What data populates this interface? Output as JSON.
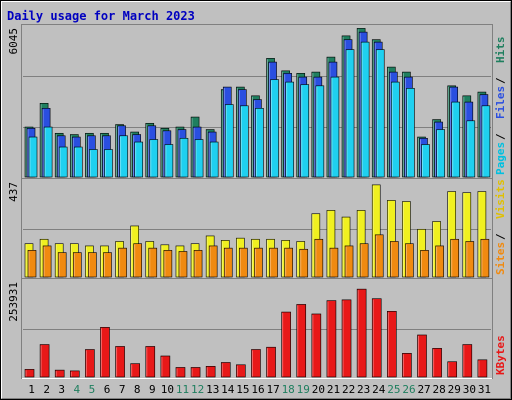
{
  "chart_data": {
    "title": "Daily usage for March 2023",
    "type": "bar",
    "categories": [
      "1",
      "2",
      "3",
      "4",
      "5",
      "6",
      "7",
      "8",
      "9",
      "10",
      "11",
      "12",
      "13",
      "14",
      "15",
      "16",
      "17",
      "18",
      "19",
      "20",
      "21",
      "22",
      "23",
      "24",
      "25",
      "26",
      "27",
      "28",
      "29",
      "30",
      "31"
    ],
    "weekend_days": [
      "4",
      "5",
      "11",
      "12",
      "18",
      "19",
      "25",
      "26"
    ],
    "panels": [
      {
        "id": "hits",
        "ymax_label": "6045",
        "ylim": [
          0,
          6045
        ],
        "labels": [
          "Pages",
          "Files",
          "Hits"
        ],
        "series": [
          {
            "name": "Hits",
            "color": "#1f7f5f",
            "values": [
              2000,
              2950,
              1750,
              1700,
              1750,
              1750,
              2100,
              1800,
              2150,
              1950,
              2000,
              2400,
              1900,
              3500,
              3600,
              3250,
              4750,
              4250,
              4150,
              4200,
              4800,
              5650,
              5950,
              5500,
              4400,
              4200,
              1600,
              2300,
              3650,
              3250,
              3400
            ]
          },
          {
            "name": "Files",
            "color": "#2a4fe0",
            "values": [
              1950,
              2750,
              1650,
              1600,
              1650,
              1650,
              2050,
              1700,
              2050,
              1850,
              1900,
              2000,
              1800,
              3600,
              3500,
              3100,
              4600,
              4150,
              4000,
              4000,
              4600,
              5500,
              5800,
              5400,
              4200,
              4000,
              1550,
              2200,
              3600,
              3000,
              3300
            ]
          },
          {
            "name": "Pages",
            "color": "#1fd0f0",
            "values": [
              1600,
              2000,
              1200,
              1200,
              1100,
              1100,
              1650,
              1400,
              1500,
              1300,
              1550,
              1500,
              1400,
              2900,
              2850,
              2750,
              3900,
              3800,
              3700,
              3650,
              4000,
              5100,
              5400,
              5100,
              3800,
              3550,
              1300,
              1900,
              3000,
              2250,
              2850
            ]
          }
        ]
      },
      {
        "id": "visits",
        "ymax_label": "437",
        "ylim": [
          0,
          437
        ],
        "labels": [
          "Sites",
          "Visits"
        ],
        "series": [
          {
            "name": "Visits",
            "color": "#f0f020",
            "values": [
              150,
              170,
              150,
              150,
              140,
              140,
              160,
              230,
              160,
              145,
              140,
              150,
              185,
              165,
              175,
              170,
              170,
              165,
              160,
              285,
              300,
              270,
              300,
              415,
              345,
              340,
              215,
              250,
              385,
              380,
              385
            ]
          },
          {
            "name": "Sites",
            "color": "#f08a10",
            "values": [
              120,
              140,
              110,
              110,
              110,
              110,
              130,
              150,
              130,
              120,
              115,
              120,
              140,
              130,
              130,
              130,
              130,
              130,
              125,
              170,
              130,
              140,
              150,
              190,
              160,
              150,
              120,
              140,
              170,
              160,
              170
            ]
          }
        ]
      },
      {
        "id": "kbytes",
        "ymax_label": "253931",
        "ylim": [
          0,
          253931
        ],
        "labels": [
          "KBytes"
        ],
        "series": [
          {
            "name": "KBytes",
            "color": "#e81818",
            "values": [
              20000,
              85000,
              18000,
              16000,
              72000,
              130000,
              80000,
              35000,
              80000,
              55000,
              25000,
              25000,
              28000,
              38000,
              32000,
              72000,
              78000,
              170000,
              190000,
              165000,
              200000,
              202000,
              230000,
              205000,
              172000,
              62000,
              110000,
              75000,
              40000,
              85000,
              45000
            ]
          }
        ]
      }
    ],
    "colors": {
      "Pages": "#00c0e0",
      "Files": "#2a4fe0",
      "Hits": "#1f7f5f",
      "Sites": "#f08a10",
      "Visits": "#e0c000",
      "KBytes": "#e81818",
      "Weekend": "#1f7f5f",
      "Title": "#0000c0"
    }
  }
}
